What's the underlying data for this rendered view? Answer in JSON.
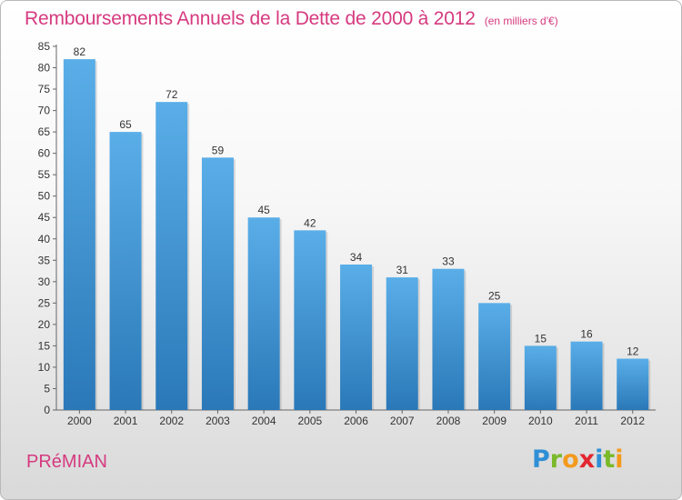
{
  "title": "Remboursements Annuels de la Dette de 2000 à 2012",
  "subtitle": "(en milliers d'€)",
  "commune": "PRéMIAN",
  "logo": {
    "letters": [
      "P",
      "r",
      "o",
      "x",
      "i",
      "t",
      "i"
    ],
    "colors": [
      "#2f8fd6",
      "#7ab929",
      "#f39a1e",
      "#e3262f",
      "#2f8fd6",
      "#7ab929",
      "#f39a1e"
    ]
  },
  "colors": {
    "accent": "#d63a7f",
    "bar_top": "#5aaee8",
    "bar_bottom": "#2a78b8"
  },
  "chart_data": {
    "type": "bar",
    "categories": [
      "2000",
      "2001",
      "2002",
      "2003",
      "2004",
      "2005",
      "2006",
      "2007",
      "2008",
      "2009",
      "2010",
      "2011",
      "2012"
    ],
    "values": [
      82,
      65,
      72,
      59,
      45,
      42,
      34,
      31,
      33,
      25,
      15,
      16,
      12
    ],
    "ylim": [
      0,
      85
    ],
    "yticks": [
      0,
      5,
      10,
      15,
      20,
      25,
      30,
      35,
      40,
      45,
      50,
      55,
      60,
      65,
      70,
      75,
      80,
      85
    ],
    "grid": false,
    "data_labels": true
  }
}
